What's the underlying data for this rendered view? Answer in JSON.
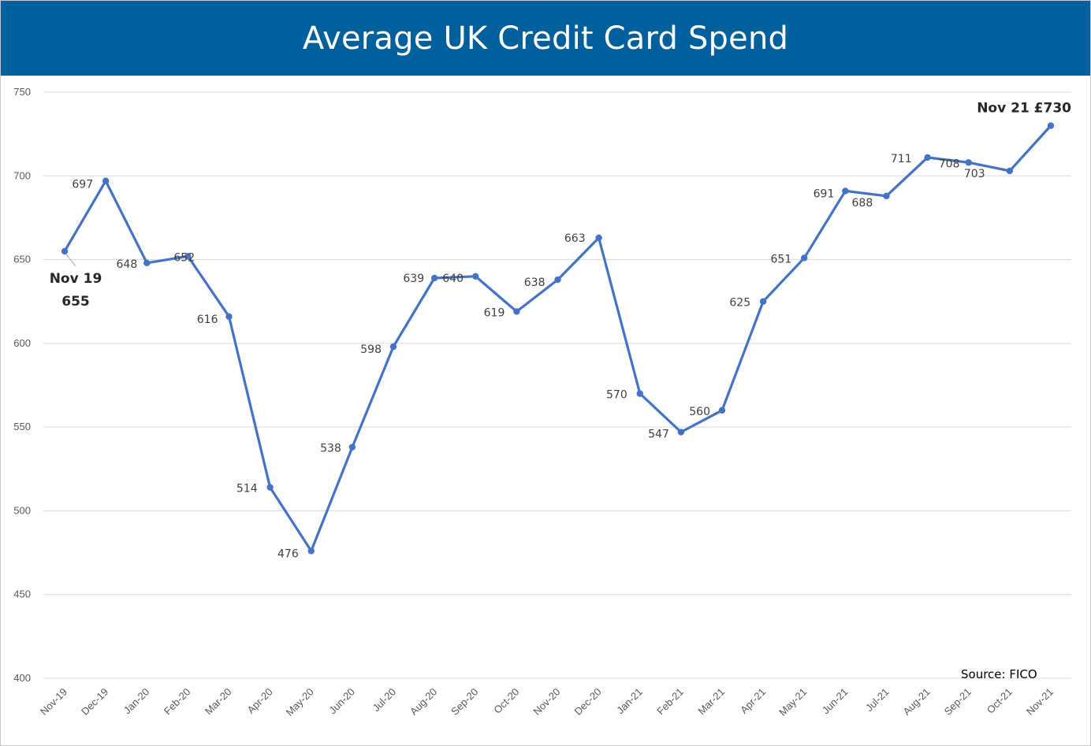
{
  "chart_data": {
    "type": "line",
    "title": "Average UK Credit Card Spend",
    "xlabel": "",
    "ylabel": "",
    "ylim": [
      400,
      750
    ],
    "yticks": [
      400,
      450,
      500,
      550,
      600,
      650,
      700,
      750
    ],
    "categories": [
      "Nov-19",
      "Dec-19",
      "Jan-20",
      "Feb-20",
      "Mar-20",
      "Apr-20",
      "May-20",
      "Jun-20",
      "Jul-20",
      "Aug-20",
      "Sep-20",
      "Oct-20",
      "Nov-20",
      "Dec-20",
      "Jan-21",
      "Feb-21",
      "Mar-21",
      "Apr-21",
      "May-21",
      "Jun-21",
      "Jul-21",
      "Aug-21",
      "Sep-21",
      "Oct-21",
      "Nov-21"
    ],
    "series": [
      {
        "values": [
          655,
          697,
          648,
          652,
          616,
          514,
          476,
          538,
          598,
          639,
          640,
          619,
          638,
          663,
          570,
          547,
          560,
          625,
          651,
          691,
          688,
          711,
          708,
          703,
          730
        ],
        "data_labels": [
          "",
          "697",
          "648",
          "652",
          "616",
          "514",
          "476",
          "538",
          "598",
          "639",
          "640",
          "619",
          "638",
          "663",
          "570",
          "547",
          "560",
          "625",
          "651",
          "691",
          "688",
          "711",
          "708",
          "703",
          ""
        ],
        "color": "#4472c4"
      }
    ],
    "annotations": {
      "first_line1": "Nov 19",
      "first_line2": "655",
      "last": "Nov 21 £730",
      "source": "Source: FICO"
    },
    "grid": true,
    "legend": "none"
  }
}
